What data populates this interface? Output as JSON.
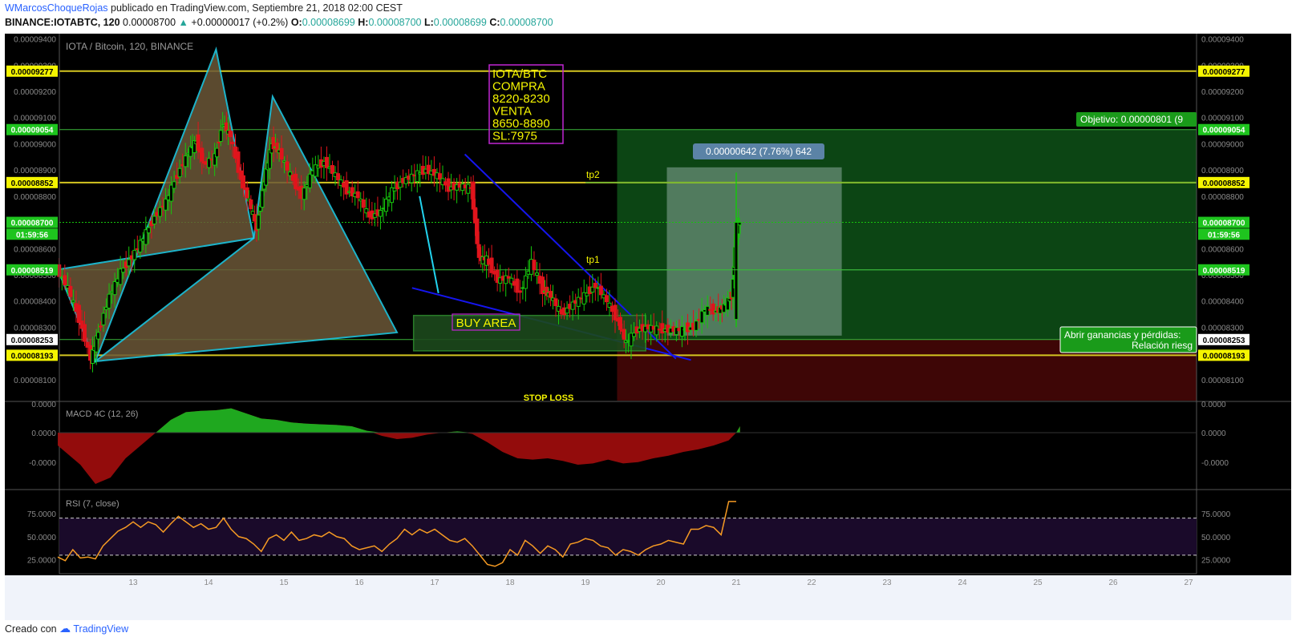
{
  "header": {
    "author": "WMarcosChoqueRojas",
    "published": "publicado en TradingView.com, Septiembre 21, 2018 02:00 CEST",
    "symbol": "BINANCE:IOTABTC, 120",
    "last": "0.00008700",
    "change_arrow": "▲",
    "change": "+0.00000017 (+0.2%)",
    "o_label": "O:",
    "o": "0.00008699",
    "h_label": "H:",
    "h": "0.00008700",
    "l_label": "L:",
    "l": "0.00008699",
    "c_label": "C:",
    "c": "0.00008700"
  },
  "footer": {
    "created": "Creado con",
    "brand": "TradingView"
  },
  "colors": {
    "background": "#000000",
    "up": "#16c60c",
    "down": "#e0141c",
    "pattern": "#22d3ee",
    "trendline": "#1515ee",
    "level": "#d4c521",
    "rsi": "#f59a23",
    "macd_up": "#1fa81f",
    "macd_down": "#a30d0d",
    "target_zone": "#0d4d16",
    "stop_zone": "#3e0606"
  },
  "chart_data": {
    "type": "candlestick",
    "title": "IOTA / Bitcoin, 120, BINANCE",
    "x_ticks": [
      "13",
      "14",
      "15",
      "16",
      "17",
      "18",
      "19",
      "20",
      "21",
      "22",
      "23",
      "24",
      "25",
      "26",
      "27"
    ],
    "y_ticks": [
      "0.00009400",
      "0.00009300",
      "0.00009200",
      "0.00009100",
      "0.00009000",
      "0.00008900",
      "0.00008800",
      "0.00008600",
      "0.00008500",
      "0.00008400",
      "0.00008300",
      "0.00008100"
    ],
    "ylim": [
      8.02e-05,
      9.42e-05
    ],
    "close_path": [
      [
        12.0,
        8520
      ],
      [
        12.15,
        8450
      ],
      [
        12.3,
        8330
      ],
      [
        12.45,
        8180
      ],
      [
        12.55,
        8280
      ],
      [
        12.7,
        8420
      ],
      [
        12.85,
        8510
      ],
      [
        13.0,
        8570
      ],
      [
        13.15,
        8640
      ],
      [
        13.3,
        8720
      ],
      [
        13.45,
        8780
      ],
      [
        13.6,
        8880
      ],
      [
        13.75,
        8970
      ],
      [
        13.85,
        9010
      ],
      [
        13.95,
        8920
      ],
      [
        14.1,
        8950
      ],
      [
        14.2,
        9080
      ],
      [
        14.3,
        9030
      ],
      [
        14.45,
        8860
      ],
      [
        14.55,
        8780
      ],
      [
        14.65,
        8680
      ],
      [
        14.75,
        8860
      ],
      [
        14.85,
        9000
      ],
      [
        14.95,
        8970
      ],
      [
        15.1,
        8880
      ],
      [
        15.25,
        8800
      ],
      [
        15.4,
        8900
      ],
      [
        15.55,
        8930
      ],
      [
        15.7,
        8880
      ],
      [
        15.85,
        8820
      ],
      [
        16.0,
        8800
      ],
      [
        16.15,
        8720
      ],
      [
        16.3,
        8740
      ],
      [
        16.45,
        8820
      ],
      [
        16.6,
        8860
      ],
      [
        16.75,
        8880
      ],
      [
        16.9,
        8900
      ],
      [
        17.05,
        8880
      ],
      [
        17.2,
        8830
      ],
      [
        17.35,
        8840
      ],
      [
        17.5,
        8830
      ],
      [
        17.6,
        8560
      ],
      [
        17.7,
        8560
      ],
      [
        17.85,
        8480
      ],
      [
        18.0,
        8490
      ],
      [
        18.15,
        8430
      ],
      [
        18.3,
        8550
      ],
      [
        18.45,
        8440
      ],
      [
        18.55,
        8420
      ],
      [
        18.7,
        8350
      ],
      [
        18.85,
        8390
      ],
      [
        19.0,
        8420
      ],
      [
        19.15,
        8460
      ],
      [
        19.3,
        8400
      ],
      [
        19.45,
        8320
      ],
      [
        19.55,
        8240
      ],
      [
        19.7,
        8290
      ],
      [
        19.85,
        8300
      ],
      [
        20.0,
        8290
      ],
      [
        20.15,
        8290
      ],
      [
        20.3,
        8290
      ],
      [
        20.45,
        8300
      ],
      [
        20.6,
        8370
      ],
      [
        20.75,
        8360
      ],
      [
        20.85,
        8380
      ],
      [
        20.95,
        8420
      ],
      [
        21.0,
        8660
      ],
      [
        21.05,
        8700
      ]
    ],
    "levels": [
      {
        "label": "0.00009277",
        "price": 9277,
        "badge": "yellow"
      },
      {
        "label": "0.00009054",
        "price": 9054,
        "badge": "green"
      },
      {
        "label": "0.00008852",
        "price": 8852,
        "badge": "yellow"
      },
      {
        "label": "0.00008700",
        "price": 8700,
        "badge": "green"
      },
      {
        "label": "01:59:56",
        "price": 8655,
        "badge": "green"
      },
      {
        "label": "0.00008519",
        "price": 8519,
        "badge": "green"
      },
      {
        "label": "0.00008253",
        "price": 8253,
        "badge": "white"
      },
      {
        "label": "0.00008193",
        "price": 8193,
        "badge": "yellow"
      }
    ],
    "annotations": {
      "trade_box": [
        "IOTA/BTC",
        "COMPRA",
        "8220-8230",
        "VENTA",
        "8650-8890",
        "SL:7975"
      ],
      "buy_area": "BUY AREA",
      "stop_loss": "STOP LOSS",
      "tp1": "tp1",
      "tp2": "tp2",
      "measure": "0.00000642 (7.76%) 642",
      "target": "Objetivo: 0.00000801 (9",
      "pnl_line1": "Abrir ganancias y pérdidas:",
      "pnl_line2": "Relación riesg"
    },
    "macd": {
      "label": "MACD 4C (12, 26)",
      "y_ticks": [
        "0.0000",
        "0.0000",
        "-0.0000"
      ],
      "points": [
        [
          12.0,
          -2
        ],
        [
          12.3,
          -5
        ],
        [
          12.5,
          -8
        ],
        [
          12.7,
          -7
        ],
        [
          12.9,
          -4
        ],
        [
          13.1,
          -2
        ],
        [
          13.3,
          0
        ],
        [
          13.5,
          2
        ],
        [
          13.7,
          3.2
        ],
        [
          13.9,
          3.4
        ],
        [
          14.1,
          3.5
        ],
        [
          14.3,
          3.8
        ],
        [
          14.5,
          3
        ],
        [
          14.7,
          2.2
        ],
        [
          14.9,
          2
        ],
        [
          15.1,
          1.6
        ],
        [
          15.3,
          1.4
        ],
        [
          15.5,
          1.3
        ],
        [
          15.7,
          1.2
        ],
        [
          15.9,
          1
        ],
        [
          16.1,
          0.3
        ],
        [
          16.3,
          -0.5
        ],
        [
          16.5,
          -1
        ],
        [
          16.7,
          -0.8
        ],
        [
          16.9,
          -0.3
        ],
        [
          17.1,
          0
        ],
        [
          17.3,
          0.2
        ],
        [
          17.5,
          -0.2
        ],
        [
          17.7,
          -1.5
        ],
        [
          17.9,
          -3
        ],
        [
          18.1,
          -4
        ],
        [
          18.3,
          -4.2
        ],
        [
          18.5,
          -4
        ],
        [
          18.7,
          -4.4
        ],
        [
          18.9,
          -5
        ],
        [
          19.1,
          -4.8
        ],
        [
          19.3,
          -4.2
        ],
        [
          19.5,
          -4.8
        ],
        [
          19.7,
          -4.6
        ],
        [
          19.9,
          -4
        ],
        [
          20.1,
          -3.6
        ],
        [
          20.3,
          -3
        ],
        [
          20.5,
          -2.6
        ],
        [
          20.7,
          -2
        ],
        [
          20.9,
          -1.2
        ],
        [
          21.0,
          0
        ],
        [
          21.05,
          1
        ]
      ]
    },
    "rsi": {
      "label": "RSI (7, close)",
      "y_ticks": [
        "75.0000",
        "50.0000",
        "25.0000"
      ],
      "bands": [
        70,
        30
      ],
      "points": [
        [
          12.0,
          28
        ],
        [
          12.1,
          24
        ],
        [
          12.2,
          36
        ],
        [
          12.3,
          27
        ],
        [
          12.4,
          28
        ],
        [
          12.5,
          26
        ],
        [
          12.6,
          40
        ],
        [
          12.7,
          48
        ],
        [
          12.8,
          56
        ],
        [
          12.9,
          60
        ],
        [
          13.0,
          66
        ],
        [
          13.1,
          60
        ],
        [
          13.2,
          66
        ],
        [
          13.3,
          63
        ],
        [
          13.4,
          55
        ],
        [
          13.5,
          64
        ],
        [
          13.6,
          72
        ],
        [
          13.7,
          66
        ],
        [
          13.8,
          60
        ],
        [
          13.9,
          64
        ],
        [
          14.0,
          58
        ],
        [
          14.1,
          60
        ],
        [
          14.2,
          70
        ],
        [
          14.3,
          58
        ],
        [
          14.4,
          50
        ],
        [
          14.5,
          48
        ],
        [
          14.6,
          42
        ],
        [
          14.7,
          34
        ],
        [
          14.8,
          48
        ],
        [
          14.9,
          52
        ],
        [
          15.0,
          46
        ],
        [
          15.1,
          55
        ],
        [
          15.2,
          46
        ],
        [
          15.3,
          48
        ],
        [
          15.4,
          52
        ],
        [
          15.5,
          50
        ],
        [
          15.6,
          55
        ],
        [
          15.7,
          50
        ],
        [
          15.8,
          48
        ],
        [
          15.9,
          40
        ],
        [
          16.0,
          36
        ],
        [
          16.1,
          38
        ],
        [
          16.2,
          40
        ],
        [
          16.3,
          34
        ],
        [
          16.4,
          42
        ],
        [
          16.5,
          48
        ],
        [
          16.6,
          58
        ],
        [
          16.7,
          52
        ],
        [
          16.8,
          58
        ],
        [
          16.9,
          54
        ],
        [
          17.0,
          58
        ],
        [
          17.1,
          52
        ],
        [
          17.2,
          46
        ],
        [
          17.3,
          44
        ],
        [
          17.4,
          48
        ],
        [
          17.5,
          40
        ],
        [
          17.6,
          30
        ],
        [
          17.7,
          20
        ],
        [
          17.8,
          18
        ],
        [
          17.9,
          22
        ],
        [
          18.0,
          36
        ],
        [
          18.1,
          30
        ],
        [
          18.2,
          46
        ],
        [
          18.3,
          40
        ],
        [
          18.4,
          32
        ],
        [
          18.5,
          40
        ],
        [
          18.6,
          36
        ],
        [
          18.7,
          28
        ],
        [
          18.8,
          42
        ],
        [
          18.9,
          44
        ],
        [
          19.0,
          48
        ],
        [
          19.1,
          46
        ],
        [
          19.2,
          40
        ],
        [
          19.3,
          38
        ],
        [
          19.4,
          30
        ],
        [
          19.5,
          36
        ],
        [
          19.6,
          34
        ],
        [
          19.7,
          30
        ],
        [
          19.8,
          36
        ],
        [
          19.9,
          40
        ],
        [
          20.0,
          42
        ],
        [
          20.1,
          46
        ],
        [
          20.2,
          44
        ],
        [
          20.3,
          42
        ],
        [
          20.4,
          58
        ],
        [
          20.5,
          58
        ],
        [
          20.6,
          62
        ],
        [
          20.7,
          60
        ],
        [
          20.8,
          52
        ],
        [
          20.9,
          88
        ],
        [
          21.0,
          88
        ]
      ]
    }
  }
}
